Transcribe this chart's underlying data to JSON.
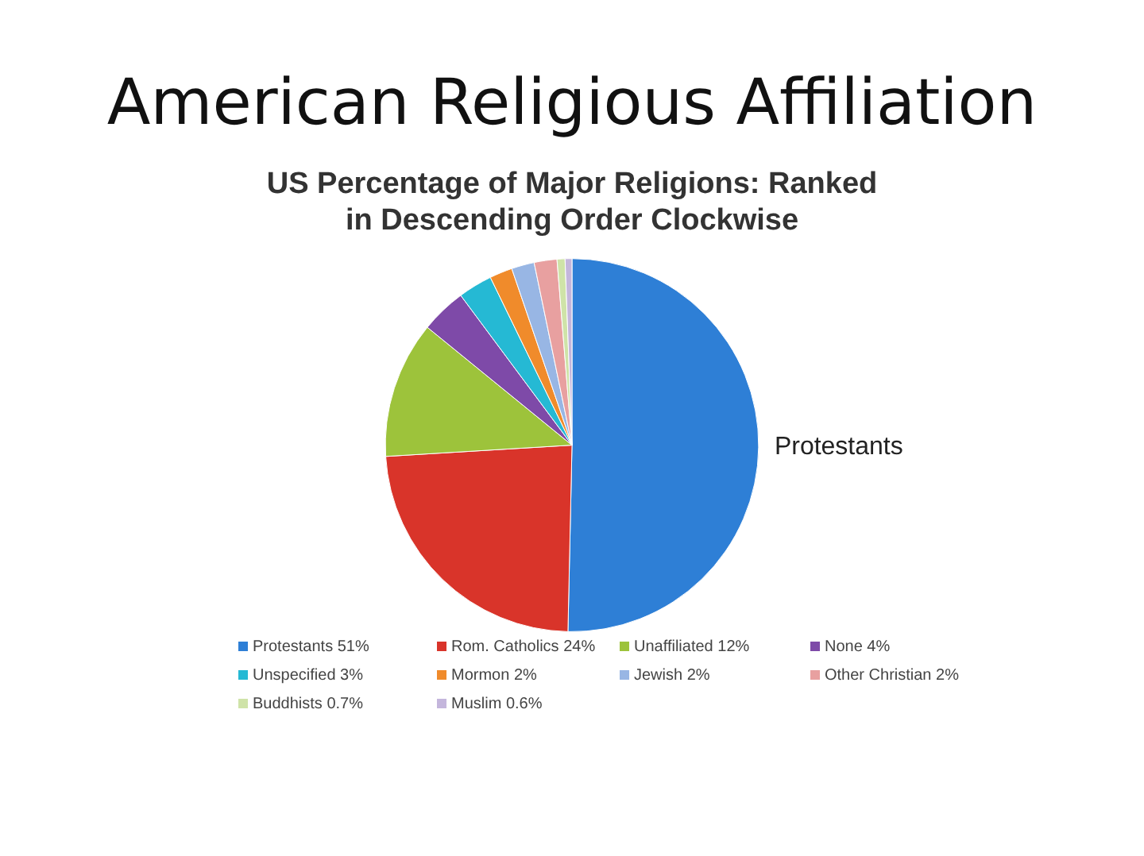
{
  "chart_data": {
    "type": "pie",
    "title": "US Percentage of Major Religions: Ranked in Descending Order Clockwise",
    "subtitle": "American Religious Affiliation",
    "categories": [
      "Protestants 51%",
      "Rom. Catholics 24%",
      "Unaffiliated 12%",
      "None 4%",
      "Unspecified 3%",
      "Mormon 2%",
      "Jewish 2%",
      "Other Christian 2%",
      "Buddhists 0.7%",
      "Muslim 0.6%"
    ],
    "values": [
      51,
      24,
      12,
      4,
      3,
      2,
      2,
      2,
      0.7,
      0.6
    ],
    "colors": [
      "#2e7fd6",
      "#d9342a",
      "#9dc33b",
      "#7e4aa8",
      "#25b9d4",
      "#f08b2b",
      "#98b6e4",
      "#e8a0a0",
      "#cfe3a8",
      "#c4b6dc"
    ],
    "legend": "bottom",
    "annotations": [
      {
        "text": "Protestants",
        "x": "Protestants 51%"
      }
    ]
  }
}
